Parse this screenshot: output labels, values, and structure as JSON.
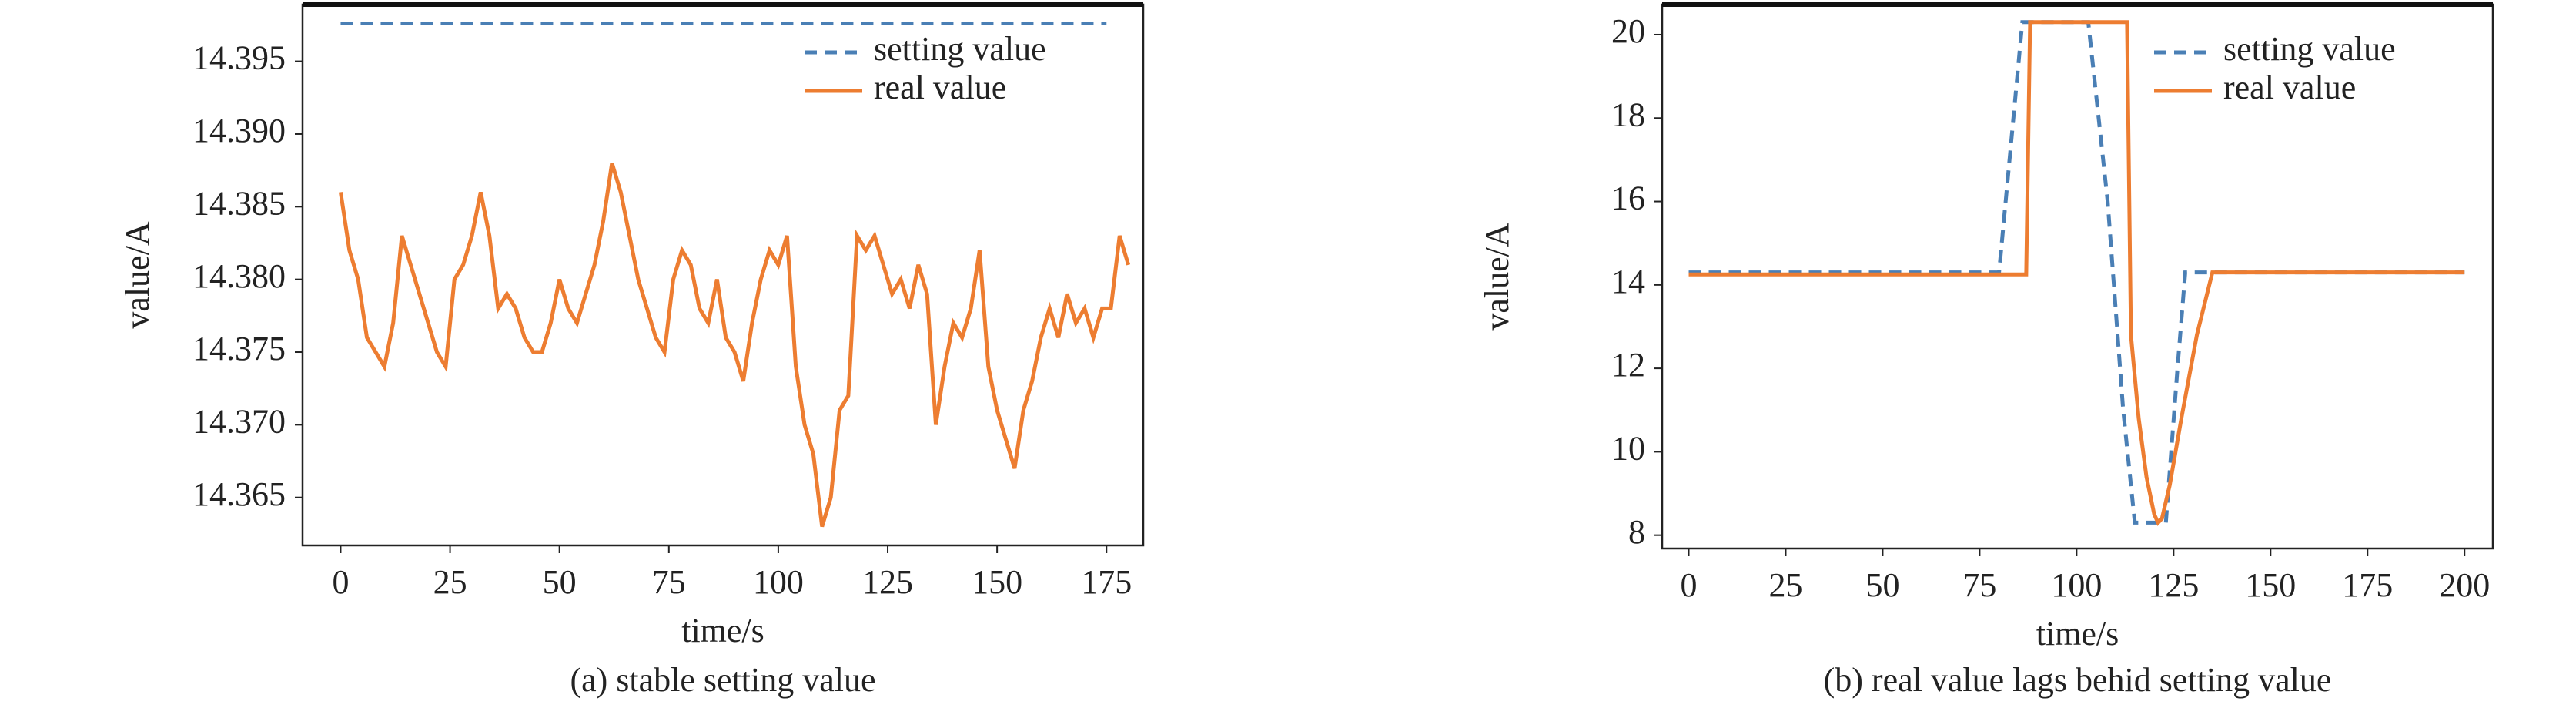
{
  "chart_data": [
    {
      "type": "line",
      "caption": "(a) stable setting value",
      "xlabel": "time/s",
      "ylabel": "value/A",
      "xlim": [
        -8.7,
        183.4
      ],
      "ylim": [
        14.3617,
        14.3989
      ],
      "xticks": [
        0,
        25,
        50,
        75,
        100,
        125,
        150,
        175
      ],
      "yticks": [
        {
          "value": 14.365,
          "label": "14.365"
        },
        {
          "value": 14.37,
          "label": "14.370"
        },
        {
          "value": 14.375,
          "label": "14.375"
        },
        {
          "value": 14.38,
          "label": "14.380"
        },
        {
          "value": 14.385,
          "label": "14.385"
        },
        {
          "value": 14.39,
          "label": "14.390"
        },
        {
          "value": 14.395,
          "label": "14.395"
        }
      ],
      "legend": "upper right",
      "series": [
        {
          "name": "setting value",
          "color": "#4a7fb5",
          "linestyle": "dashed",
          "x": [
            0,
            175
          ],
          "values": [
            14.3976,
            14.3976
          ]
        },
        {
          "name": "real value",
          "color": "#ed7d31",
          "linestyle": "solid",
          "x": [
            0,
            2,
            4,
            6,
            8,
            10,
            12,
            14,
            16,
            18,
            20,
            22,
            24,
            26,
            28,
            30,
            32,
            34,
            36,
            38,
            40,
            42,
            44,
            46,
            48,
            50,
            52,
            54,
            56,
            58,
            60,
            62,
            64,
            66,
            68,
            70,
            72,
            74,
            76,
            78,
            80,
            82,
            84,
            86,
            88,
            90,
            92,
            94,
            96,
            98,
            100,
            102,
            104,
            106,
            108,
            110,
            112,
            114,
            116,
            118,
            120,
            122,
            124,
            126,
            128,
            130,
            132,
            134,
            136,
            138,
            140,
            142,
            144,
            146,
            148,
            150,
            152,
            154,
            156,
            158,
            160,
            162,
            164,
            166,
            168,
            170,
            172,
            174,
            176,
            178,
            180
          ],
          "values": [
            14.386,
            14.382,
            14.38,
            14.376,
            14.375,
            14.374,
            14.377,
            14.383,
            14.381,
            14.379,
            14.377,
            14.375,
            14.374,
            14.38,
            14.381,
            14.383,
            14.386,
            14.383,
            14.378,
            14.379,
            14.378,
            14.376,
            14.375,
            14.375,
            14.377,
            14.38,
            14.378,
            14.377,
            14.379,
            14.381,
            14.384,
            14.388,
            14.386,
            14.383,
            14.38,
            14.378,
            14.376,
            14.375,
            14.38,
            14.382,
            14.381,
            14.378,
            14.377,
            14.38,
            14.376,
            14.375,
            14.373,
            14.377,
            14.38,
            14.382,
            14.381,
            14.383,
            14.374,
            14.37,
            14.368,
            14.363,
            14.365,
            14.371,
            14.372,
            14.383,
            14.382,
            14.383,
            14.381,
            14.379,
            14.38,
            14.378,
            14.381,
            14.379,
            14.37,
            14.374,
            14.377,
            14.376,
            14.378,
            14.382,
            14.374,
            14.371,
            14.369,
            14.367,
            14.371,
            14.373,
            14.376,
            14.378,
            14.376,
            14.379,
            14.377,
            14.378,
            14.376,
            14.378,
            14.378,
            14.383,
            14.381
          ]
        }
      ]
    },
    {
      "type": "line",
      "caption": "(b) real value lags behid setting value",
      "xlabel": "time/s",
      "ylabel": "value/A",
      "xlim": [
        -6.85,
        207.3
      ],
      "ylim": [
        7.68,
        20.72
      ],
      "xticks": [
        0,
        25,
        50,
        75,
        100,
        125,
        150,
        175,
        200
      ],
      "yticks": [
        8,
        10,
        12,
        14,
        16,
        18,
        20
      ],
      "legend": "upper right",
      "series": [
        {
          "name": "setting value",
          "color": "#4a7fb5",
          "linestyle": "dashed",
          "x": [
            0,
            80,
            86,
            103,
            108,
            112,
            115,
            123,
            126,
            128,
            200
          ],
          "values": [
            14.3,
            14.3,
            20.3,
            20.3,
            16,
            11,
            8.3,
            8.3,
            12,
            14.3,
            14.3
          ]
        },
        {
          "name": "real value",
          "color": "#ed7d31",
          "linestyle": "solid",
          "x": [
            0,
            87,
            88,
            113,
            114,
            116,
            118,
            120,
            121,
            122,
            124,
            127,
            131,
            135,
            200
          ],
          "values": [
            14.25,
            14.25,
            20.3,
            20.3,
            12.8,
            10.8,
            9.4,
            8.5,
            8.3,
            8.4,
            9.2,
            10.8,
            12.8,
            14.3,
            14.3
          ]
        }
      ]
    }
  ]
}
